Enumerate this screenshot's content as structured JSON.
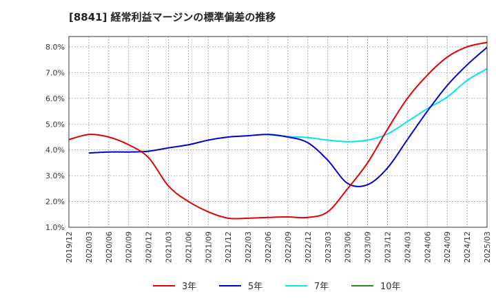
{
  "chart_data": {
    "type": "line",
    "title": "[8841]  経常利益マージンの標準偏差の推移",
    "xlabel": "",
    "ylabel": "",
    "ylim": [
      1.0,
      8.4
    ],
    "yticks": [
      "1.0%",
      "2.0%",
      "3.0%",
      "4.0%",
      "5.0%",
      "6.0%",
      "7.0%",
      "8.0%"
    ],
    "ytick_values": [
      1.0,
      2.0,
      3.0,
      4.0,
      5.0,
      6.0,
      7.0,
      8.0
    ],
    "xticks": [
      "2019/12",
      "2020/03",
      "2020/06",
      "2020/09",
      "2020/12",
      "2021/03",
      "2021/06",
      "2021/09",
      "2021/12",
      "2022/03",
      "2022/06",
      "2022/09",
      "2022/12",
      "2023/03",
      "2023/06",
      "2023/09",
      "2023/12",
      "2024/03",
      "2024/06",
      "2024/09",
      "2024/12",
      "2025/03"
    ],
    "grid": true,
    "legend_position": "bottom",
    "series": [
      {
        "name": "3年",
        "color": "#e00000",
        "values": [
          4.4,
          4.6,
          4.5,
          4.2,
          3.7,
          2.6,
          2.0,
          1.6,
          1.35,
          1.35,
          1.38,
          1.4,
          1.38,
          1.6,
          2.5,
          3.5,
          4.8,
          6.0,
          6.9,
          7.6,
          8.0,
          8.17
        ]
      },
      {
        "name": "5年",
        "color": "#0000cc",
        "values": [
          null,
          3.88,
          3.92,
          3.92,
          3.95,
          4.08,
          4.2,
          4.38,
          4.5,
          4.55,
          4.6,
          4.5,
          4.28,
          3.6,
          2.7,
          2.65,
          3.3,
          4.4,
          5.5,
          6.5,
          7.3,
          7.98
        ]
      },
      {
        "name": "7年",
        "color": "#00e5ee",
        "values": [
          null,
          null,
          null,
          null,
          null,
          null,
          null,
          null,
          null,
          null,
          4.6,
          4.52,
          4.48,
          4.38,
          4.32,
          4.38,
          4.62,
          5.1,
          5.6,
          6.05,
          6.7,
          7.15
        ]
      },
      {
        "name": "10年",
        "color": "#228b22",
        "values": []
      }
    ]
  }
}
